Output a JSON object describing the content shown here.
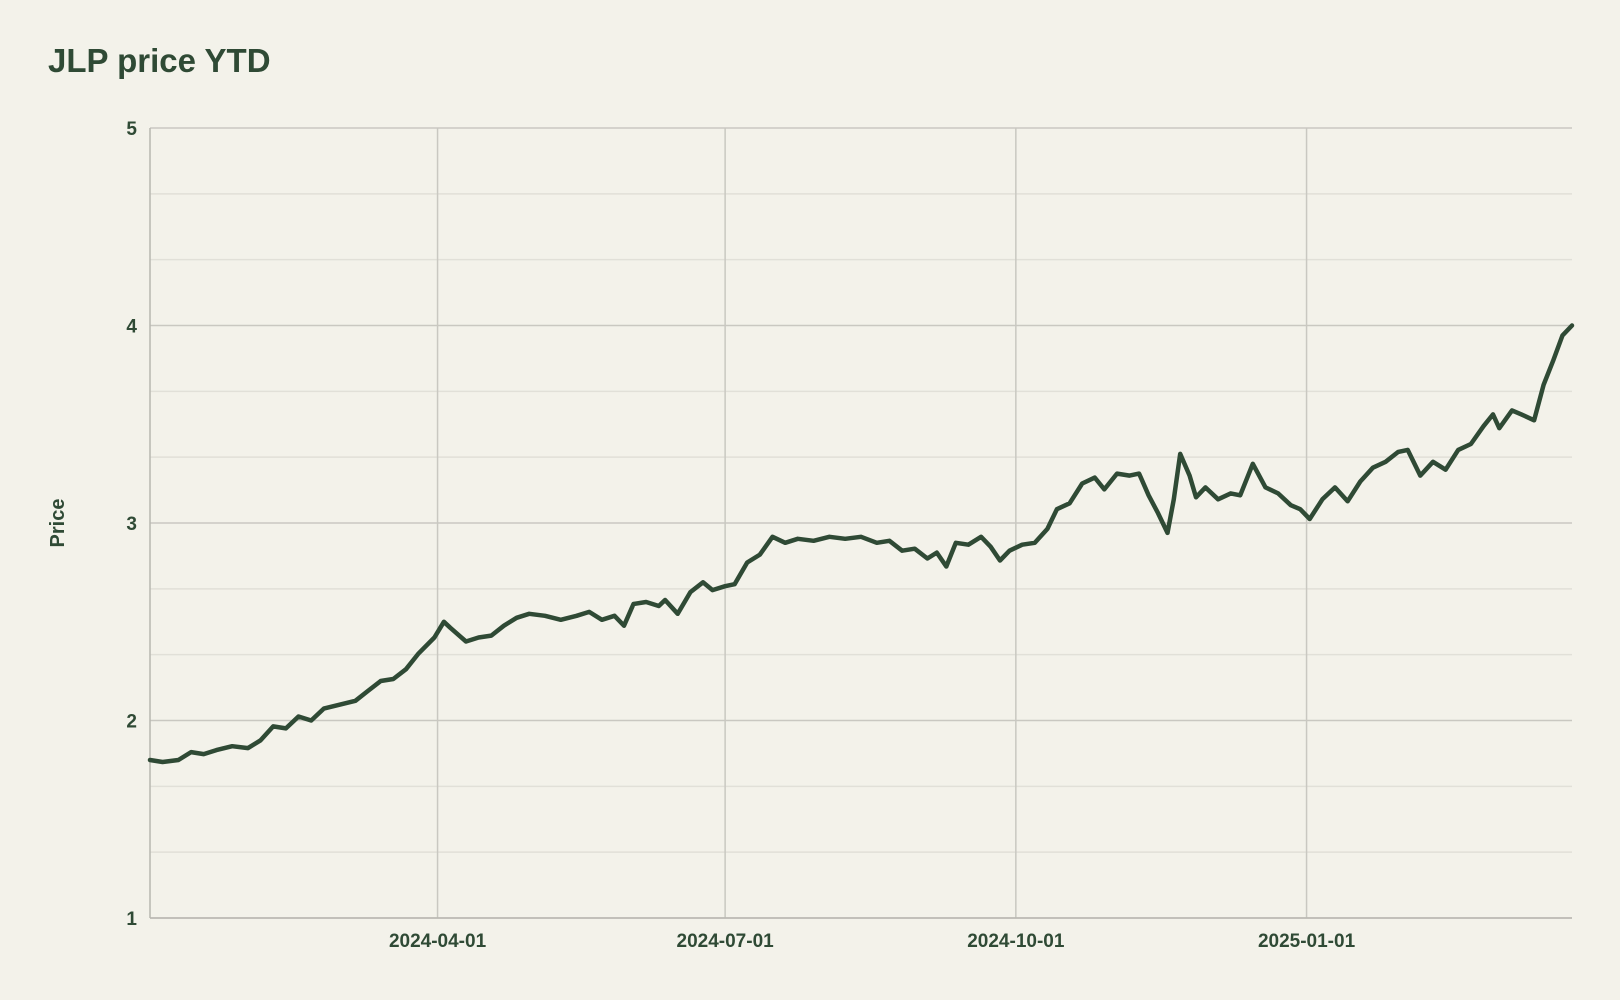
{
  "chart_data": {
    "type": "line",
    "title": "JLP price YTD",
    "xlabel": "",
    "ylabel": "Price",
    "ylim": [
      1,
      5
    ],
    "xlim": [
      "2024-01-01",
      "2025-03-26"
    ],
    "grid": true,
    "line_color": "#2f4a35",
    "x_ticks": [
      "2024-04-01",
      "2024-07-01",
      "2024-10-01",
      "2025-01-01"
    ],
    "y_ticks": [
      1,
      2,
      3,
      4,
      5
    ],
    "series": [
      {
        "points": [
          [
            "2024-01-01",
            1.8
          ],
          [
            "2024-01-05",
            1.79
          ],
          [
            "2024-01-10",
            1.8
          ],
          [
            "2024-01-14",
            1.84
          ],
          [
            "2024-01-18",
            1.83
          ],
          [
            "2024-01-22",
            1.85
          ],
          [
            "2024-01-27",
            1.87
          ],
          [
            "2024-02-01",
            1.86
          ],
          [
            "2024-02-05",
            1.9
          ],
          [
            "2024-02-09",
            1.97
          ],
          [
            "2024-02-13",
            1.96
          ],
          [
            "2024-02-17",
            2.02
          ],
          [
            "2024-02-21",
            2.0
          ],
          [
            "2024-02-25",
            2.06
          ],
          [
            "2024-03-01",
            2.08
          ],
          [
            "2024-03-06",
            2.1
          ],
          [
            "2024-03-10",
            2.15
          ],
          [
            "2024-03-14",
            2.2
          ],
          [
            "2024-03-18",
            2.21
          ],
          [
            "2024-03-22",
            2.26
          ],
          [
            "2024-03-26",
            2.34
          ],
          [
            "2024-03-31",
            2.42
          ],
          [
            "2024-04-03",
            2.5
          ],
          [
            "2024-04-05",
            2.47
          ],
          [
            "2024-04-10",
            2.4
          ],
          [
            "2024-04-14",
            2.42
          ],
          [
            "2024-04-18",
            2.43
          ],
          [
            "2024-04-22",
            2.48
          ],
          [
            "2024-04-26",
            2.52
          ],
          [
            "2024-04-30",
            2.54
          ],
          [
            "2024-05-05",
            2.53
          ],
          [
            "2024-05-10",
            2.51
          ],
          [
            "2024-05-15",
            2.53
          ],
          [
            "2024-05-19",
            2.55
          ],
          [
            "2024-05-23",
            2.51
          ],
          [
            "2024-05-27",
            2.53
          ],
          [
            "2024-05-30",
            2.48
          ],
          [
            "2024-06-02",
            2.59
          ],
          [
            "2024-06-06",
            2.6
          ],
          [
            "2024-06-10",
            2.58
          ],
          [
            "2024-06-12",
            2.61
          ],
          [
            "2024-06-16",
            2.54
          ],
          [
            "2024-06-20",
            2.65
          ],
          [
            "2024-06-24",
            2.7
          ],
          [
            "2024-06-27",
            2.66
          ],
          [
            "2024-07-01",
            2.68
          ],
          [
            "2024-07-04",
            2.69
          ],
          [
            "2024-07-08",
            2.8
          ],
          [
            "2024-07-12",
            2.84
          ],
          [
            "2024-07-16",
            2.93
          ],
          [
            "2024-07-20",
            2.9
          ],
          [
            "2024-07-24",
            2.92
          ],
          [
            "2024-07-29",
            2.91
          ],
          [
            "2024-08-03",
            2.93
          ],
          [
            "2024-08-08",
            2.92
          ],
          [
            "2024-08-13",
            2.93
          ],
          [
            "2024-08-18",
            2.9
          ],
          [
            "2024-08-22",
            2.91
          ],
          [
            "2024-08-26",
            2.86
          ],
          [
            "2024-08-30",
            2.87
          ],
          [
            "2024-09-03",
            2.82
          ],
          [
            "2024-09-06",
            2.85
          ],
          [
            "2024-09-09",
            2.78
          ],
          [
            "2024-09-12",
            2.9
          ],
          [
            "2024-09-16",
            2.89
          ],
          [
            "2024-09-20",
            2.93
          ],
          [
            "2024-09-23",
            2.88
          ],
          [
            "2024-09-26",
            2.81
          ],
          [
            "2024-09-29",
            2.86
          ],
          [
            "2024-10-03",
            2.89
          ],
          [
            "2024-10-07",
            2.9
          ],
          [
            "2024-10-11",
            2.97
          ],
          [
            "2024-10-14",
            3.07
          ],
          [
            "2024-10-18",
            3.1
          ],
          [
            "2024-10-22",
            3.2
          ],
          [
            "2024-10-26",
            3.23
          ],
          [
            "2024-10-29",
            3.17
          ],
          [
            "2024-11-02",
            3.25
          ],
          [
            "2024-11-06",
            3.24
          ],
          [
            "2024-11-09",
            3.25
          ],
          [
            "2024-11-12",
            3.14
          ],
          [
            "2024-11-15",
            3.05
          ],
          [
            "2024-11-18",
            2.95
          ],
          [
            "2024-11-20",
            3.12
          ],
          [
            "2024-11-22",
            3.35
          ],
          [
            "2024-11-25",
            3.24
          ],
          [
            "2024-11-27",
            3.13
          ],
          [
            "2024-11-30",
            3.18
          ],
          [
            "2024-12-04",
            3.12
          ],
          [
            "2024-12-08",
            3.15
          ],
          [
            "2024-12-11",
            3.14
          ],
          [
            "2024-12-15",
            3.3
          ],
          [
            "2024-12-19",
            3.18
          ],
          [
            "2024-12-23",
            3.15
          ],
          [
            "2024-12-27",
            3.09
          ],
          [
            "2024-12-30",
            3.07
          ],
          [
            "2025-01-02",
            3.02
          ],
          [
            "2025-01-06",
            3.12
          ],
          [
            "2025-01-10",
            3.18
          ],
          [
            "2025-01-14",
            3.11
          ],
          [
            "2025-01-18",
            3.21
          ],
          [
            "2025-01-22",
            3.28
          ],
          [
            "2025-01-26",
            3.31
          ],
          [
            "2025-01-30",
            3.36
          ],
          [
            "2025-02-02",
            3.37
          ],
          [
            "2025-02-06",
            3.24
          ],
          [
            "2025-02-10",
            3.31
          ],
          [
            "2025-02-14",
            3.27
          ],
          [
            "2025-02-18",
            3.37
          ],
          [
            "2025-02-22",
            3.4
          ],
          [
            "2025-02-26",
            3.49
          ],
          [
            "2025-03-01",
            3.55
          ],
          [
            "2025-03-03",
            3.48
          ],
          [
            "2025-03-07",
            3.57
          ],
          [
            "2025-03-10",
            3.55
          ],
          [
            "2025-03-14",
            3.52
          ],
          [
            "2025-03-17",
            3.7
          ],
          [
            "2025-03-20",
            3.82
          ],
          [
            "2025-03-23",
            3.95
          ],
          [
            "2025-03-26",
            4.0
          ]
        ]
      }
    ]
  }
}
